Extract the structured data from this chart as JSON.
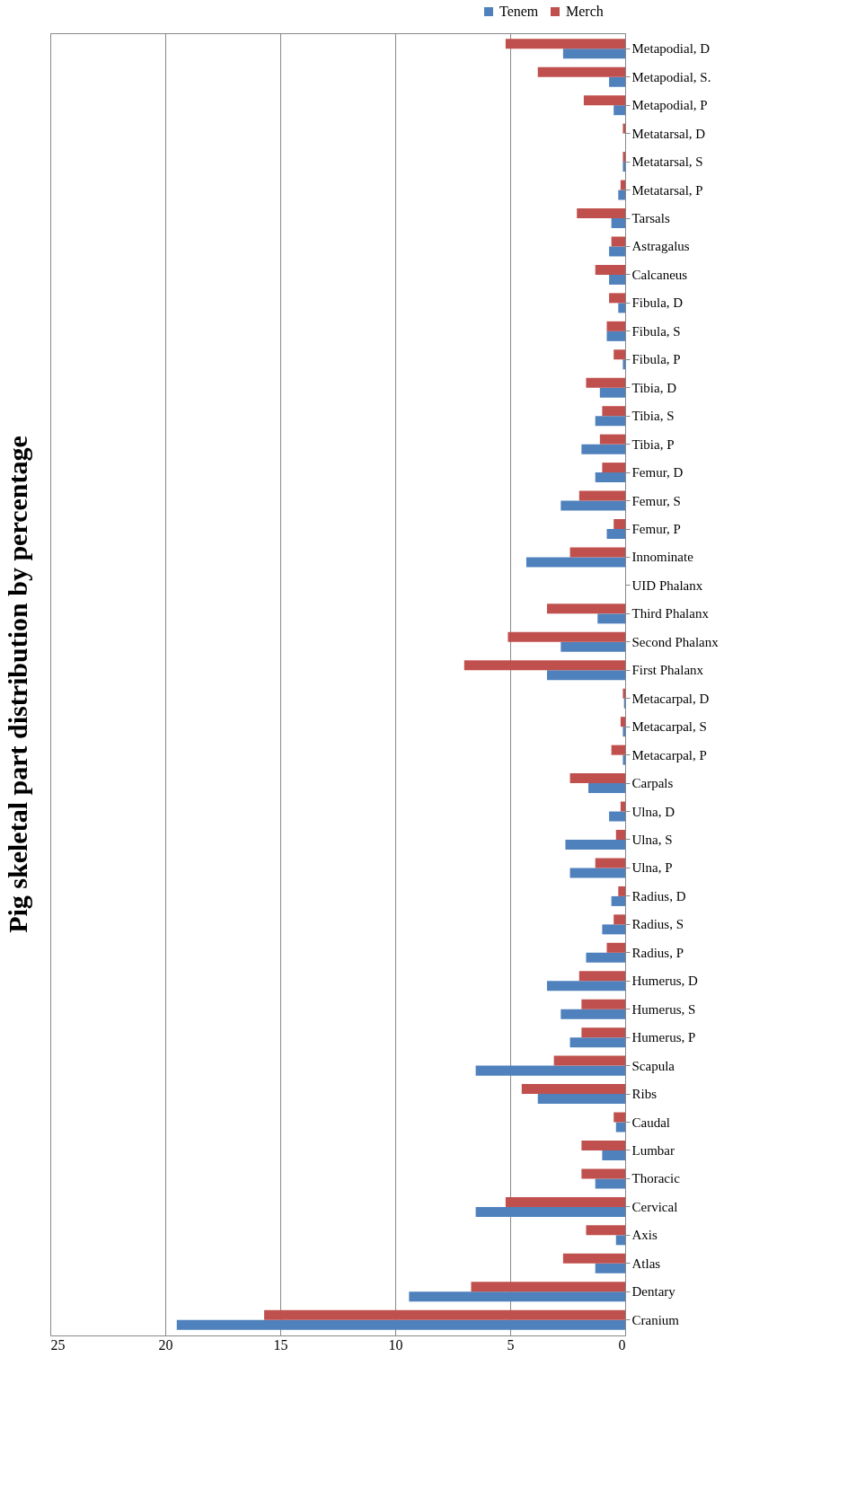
{
  "chart_data": {
    "type": "bar",
    "orientation": "horizontal",
    "title": "Pig skeletal part distribution by percentage",
    "categories": [
      "Metapodial, D",
      "Metapodial, S.",
      "Metapodial, P",
      "Metatarsal, D",
      "Metatarsal, S",
      "Metatarsal, P",
      "Tarsals",
      "Astragalus",
      "Calcaneus",
      "Fibula, D",
      "Fibula, S",
      "Fibula, P",
      "Tibia, D",
      "Tibia, S",
      "Tibia, P",
      "Femur, D",
      "Femur, S",
      "Femur, P",
      "Innominate",
      "UID Phalanx",
      "Third Phalanx",
      "Second Phalanx",
      "First Phalanx",
      "Metacarpal, D",
      "Metacarpal, S",
      "Metacarpal, P",
      "Carpals",
      "Ulna, D",
      "Ulna, S",
      "Ulna, P",
      "Radius, D",
      "Radius, S",
      "Radius, P",
      "Humerus, D",
      "Humerus, S",
      "Humerus, P",
      "Scapula",
      "Ribs",
      "Caudal",
      "Lumbar",
      "Thoracic",
      "Cervical",
      "Axis",
      "Atlas",
      "Dentary",
      "Cranium"
    ],
    "series": [
      {
        "name": "Tenem",
        "color": "#4f81bd",
        "values": [
          2.7,
          0.7,
          0.5,
          0,
          0.1,
          0.3,
          0.6,
          0.7,
          0.7,
          0.3,
          0.8,
          0.1,
          1.1,
          1.3,
          1.9,
          1.3,
          2.8,
          0.8,
          4.3,
          0,
          1.2,
          2.8,
          3.4,
          0.05,
          0.1,
          0.1,
          1.6,
          0.7,
          2.6,
          2.4,
          0.6,
          1.0,
          1.7,
          3.4,
          2.8,
          2.4,
          6.5,
          3.8,
          0.4,
          1.0,
          1.3,
          6.5,
          0.4,
          1.3,
          9.4,
          19.5
        ]
      },
      {
        "name": "Merch",
        "color": "#c0504d",
        "values": [
          5.2,
          3.8,
          1.8,
          0.1,
          0.1,
          0.2,
          2.1,
          0.6,
          1.3,
          0.7,
          0.8,
          0.5,
          1.7,
          1.0,
          1.1,
          1.0,
          2.0,
          0.5,
          2.4,
          0,
          3.4,
          5.1,
          7.0,
          0.1,
          0.2,
          0.6,
          2.4,
          0.2,
          0.4,
          1.3,
          0.3,
          0.5,
          0.8,
          2.0,
          1.9,
          1.9,
          3.1,
          4.5,
          0.5,
          1.9,
          1.9,
          5.2,
          1.7,
          2.7,
          6.7,
          15.7
        ]
      }
    ],
    "xlim": [
      25,
      0
    ],
    "xticks": [
      0,
      5,
      10,
      15,
      20,
      25
    ],
    "grid": "x",
    "legend": "top right"
  }
}
